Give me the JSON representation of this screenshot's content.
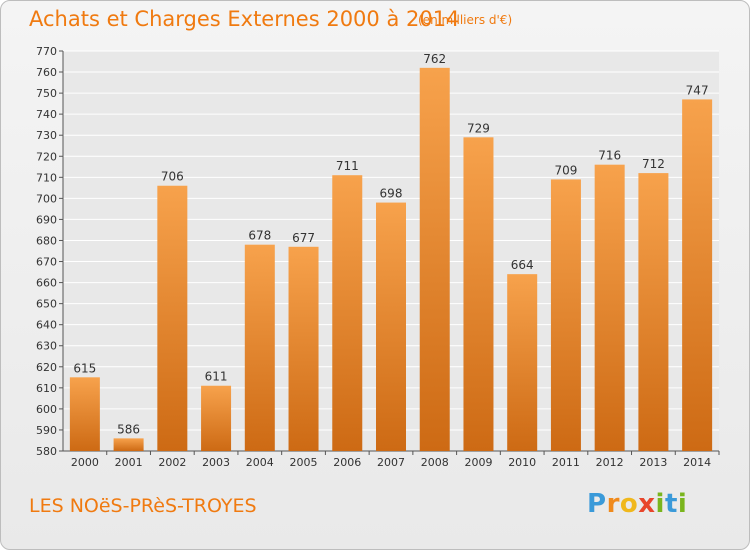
{
  "header": {
    "title": "Achats et Charges Externes 2000 à 2014",
    "subtitle": "(en milliers d'€)"
  },
  "footer": {
    "commune": "LES NOëS-PRèS-TROYES",
    "brand_letters": [
      "P",
      "r",
      "o",
      "x",
      "i",
      "t",
      "i"
    ],
    "brand_colors": [
      "#3a9ad9",
      "#f08a1c",
      "#f0b81c",
      "#e8452b",
      "#7ab51d",
      "#3a9ad9",
      "#7ab51d"
    ]
  },
  "chart_data": {
    "type": "bar",
    "title": "Achats et Charges Externes 2000 à 2014",
    "categories": [
      "2000",
      "2001",
      "2002",
      "2003",
      "2004",
      "2005",
      "2006",
      "2007",
      "2008",
      "2009",
      "2010",
      "2011",
      "2012",
      "2013",
      "2014"
    ],
    "values": [
      615,
      586,
      706,
      611,
      678,
      677,
      711,
      698,
      762,
      729,
      664,
      709,
      716,
      712,
      747
    ],
    "ylim": [
      580,
      770
    ],
    "ytick_step": 10,
    "grid": true,
    "bar_color_top": "#f7a24c",
    "bar_color_bottom": "#cd6a14"
  }
}
